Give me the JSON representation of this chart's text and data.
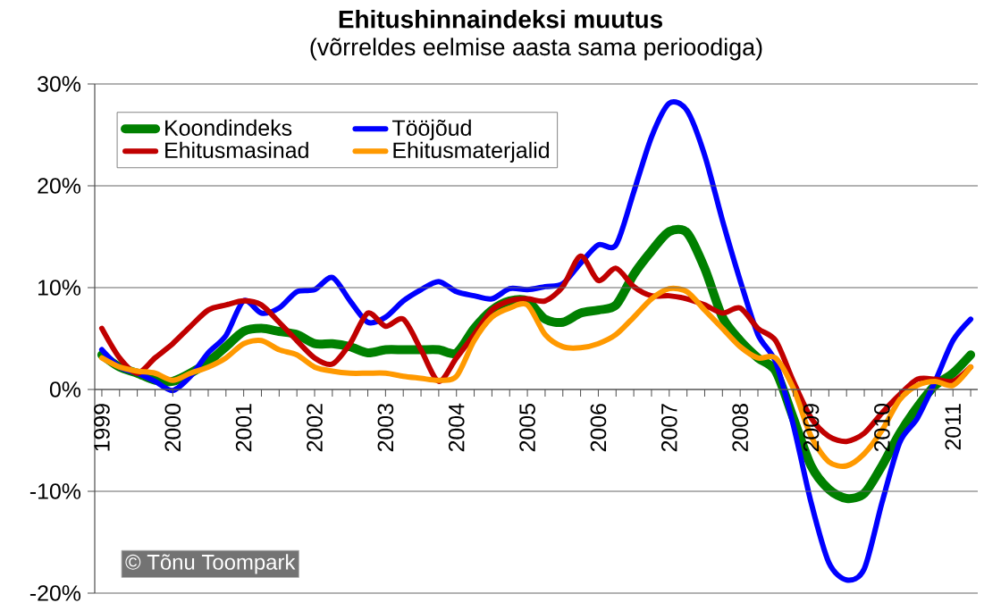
{
  "chart_data": {
    "type": "line",
    "title": "Ehitushinnaindeksi muutus",
    "subtitle": "(võrreldes eelmise aasta sama perioodiga)",
    "categories": [
      "1999",
      null,
      null,
      null,
      "2000",
      null,
      null,
      null,
      "2001",
      null,
      null,
      null,
      "2002",
      null,
      null,
      null,
      "2003",
      null,
      null,
      null,
      "2004",
      null,
      null,
      null,
      "2005",
      null,
      null,
      null,
      "2006",
      null,
      null,
      null,
      "2007",
      null,
      null,
      null,
      "2008",
      null,
      null,
      null,
      "2009",
      null,
      null,
      null,
      "2010",
      null,
      null,
      null,
      "2011",
      null
    ],
    "series": [
      {
        "name": "Koondindeks",
        "color": "#008000",
        "values": [
          3.4,
          2.2,
          1.6,
          0.9,
          0.8,
          1.6,
          2.7,
          4.2,
          5.7,
          6.0,
          5.7,
          5.4,
          4.5,
          4.5,
          4.2,
          3.6,
          3.9,
          3.9,
          3.9,
          3.9,
          3.6,
          6.0,
          7.8,
          8.7,
          8.7,
          6.9,
          6.6,
          7.5,
          7.8,
          8.3,
          11.3,
          13.6,
          15.5,
          15.4,
          11.9,
          7.1,
          4.8,
          3.1,
          1.8,
          -2.8,
          -7.5,
          -9.8,
          -10.7,
          -10.2,
          -7.5,
          -4.3,
          -1.7,
          0.4,
          1.6,
          3.4
        ]
      },
      {
        "name": "Tööjõud",
        "color": "#0000ff",
        "values": [
          3.9,
          2.2,
          1.6,
          0.8,
          -0.1,
          1.3,
          3.6,
          5.3,
          8.7,
          7.5,
          8.0,
          9.6,
          9.8,
          11.0,
          8.7,
          6.6,
          7.1,
          8.7,
          9.8,
          10.6,
          9.6,
          9.2,
          8.9,
          9.9,
          9.8,
          10.1,
          10.4,
          12.4,
          14.2,
          14.2,
          19.4,
          24.8,
          28.1,
          27.4,
          23.0,
          16.6,
          10.7,
          5.4,
          2.7,
          -3.5,
          -11.1,
          -17.0,
          -18.7,
          -17.6,
          -11.1,
          -5.2,
          -2.8,
          0.8,
          4.8,
          6.9
        ]
      },
      {
        "name": "Ehitusmasinad",
        "color": "#c00000",
        "values": [
          6.0,
          3.1,
          1.6,
          3.1,
          4.5,
          6.2,
          7.8,
          8.3,
          8.7,
          8.3,
          6.6,
          4.8,
          3.1,
          2.5,
          4.5,
          7.5,
          6.2,
          6.9,
          3.9,
          0.8,
          3.1,
          5.4,
          7.8,
          8.7,
          8.9,
          8.7,
          10.1,
          13.1,
          10.7,
          11.9,
          10.1,
          9.2,
          9.2,
          8.9,
          8.3,
          7.5,
          8.0,
          6.0,
          4.8,
          0.8,
          -2.8,
          -4.6,
          -5.1,
          -4.3,
          -2.3,
          -0.5,
          1.0,
          1.0,
          0.8,
          2.2
        ]
      },
      {
        "name": "Ehitusmaterjalid",
        "color": "#ff9900",
        "values": [
          3.1,
          2.2,
          1.8,
          1.6,
          0.9,
          1.6,
          2.2,
          3.1,
          4.5,
          4.8,
          3.9,
          3.4,
          2.2,
          1.8,
          1.6,
          1.6,
          1.6,
          1.3,
          1.1,
          0.9,
          1.3,
          4.8,
          7.1,
          8.0,
          8.3,
          5.4,
          4.2,
          4.1,
          4.5,
          5.4,
          7.1,
          8.9,
          9.9,
          9.6,
          7.8,
          6.0,
          4.2,
          3.1,
          3.1,
          0.1,
          -4.6,
          -7.1,
          -7.5,
          -6.3,
          -4.0,
          -1.0,
          0.4,
          0.8,
          0.4,
          2.2
        ]
      }
    ],
    "ylim": [
      -20,
      30
    ],
    "yticks": [
      {
        "value": -20,
        "label": "-20%"
      },
      {
        "value": -10,
        "label": "-10%"
      },
      {
        "value": 0,
        "label": "0%"
      },
      {
        "value": 10,
        "label": "10%"
      },
      {
        "value": 20,
        "label": "20%"
      },
      {
        "value": 30,
        "label": "30%"
      }
    ],
    "grid": "y",
    "legend": "top left",
    "annotations": [
      "© Tõnu Toompark"
    ]
  }
}
